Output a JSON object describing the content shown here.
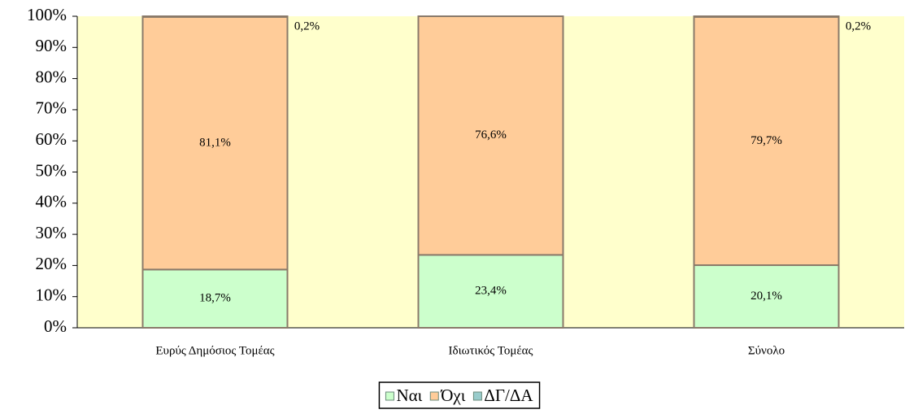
{
  "chart_data": {
    "type": "stacked_bar",
    "categories": [
      "Ευρύς Δημόσιος Τομέας",
      "Ιδιωτικός Τομέας",
      "Σύνολο"
    ],
    "series": [
      {
        "name": "Ναι",
        "color": "#ccffcc",
        "values": [
          18.7,
          23.4,
          20.1
        ],
        "value_labels": [
          "18,7%",
          "23,4%",
          "20,1%"
        ]
      },
      {
        "name": "Όχι",
        "color": "#ffcc99",
        "values": [
          81.1,
          76.6,
          79.7
        ],
        "value_labels": [
          "81,1%",
          "76,6%",
          "79,7%"
        ]
      },
      {
        "name": "ΔΓ/ΔΑ",
        "color": "#99cccc",
        "values": [
          0.2,
          0,
          0.2
        ],
        "value_labels": [
          "0,2%",
          null,
          "0,2%"
        ]
      }
    ],
    "ylim": [
      0,
      100
    ],
    "yticks": [
      {
        "value": 0,
        "label": "0%"
      },
      {
        "value": 10,
        "label": "10%"
      },
      {
        "value": 20,
        "label": "20%"
      },
      {
        "value": 30,
        "label": "30%"
      },
      {
        "value": 40,
        "label": "40%"
      },
      {
        "value": 50,
        "label": "50%"
      },
      {
        "value": 60,
        "label": "60%"
      },
      {
        "value": 70,
        "label": "70%"
      },
      {
        "value": 80,
        "label": "80%"
      },
      {
        "value": 90,
        "label": "90%"
      },
      {
        "value": 100,
        "label": "100%"
      }
    ],
    "plot_background": "#ffffcc",
    "legend": "bottom"
  }
}
